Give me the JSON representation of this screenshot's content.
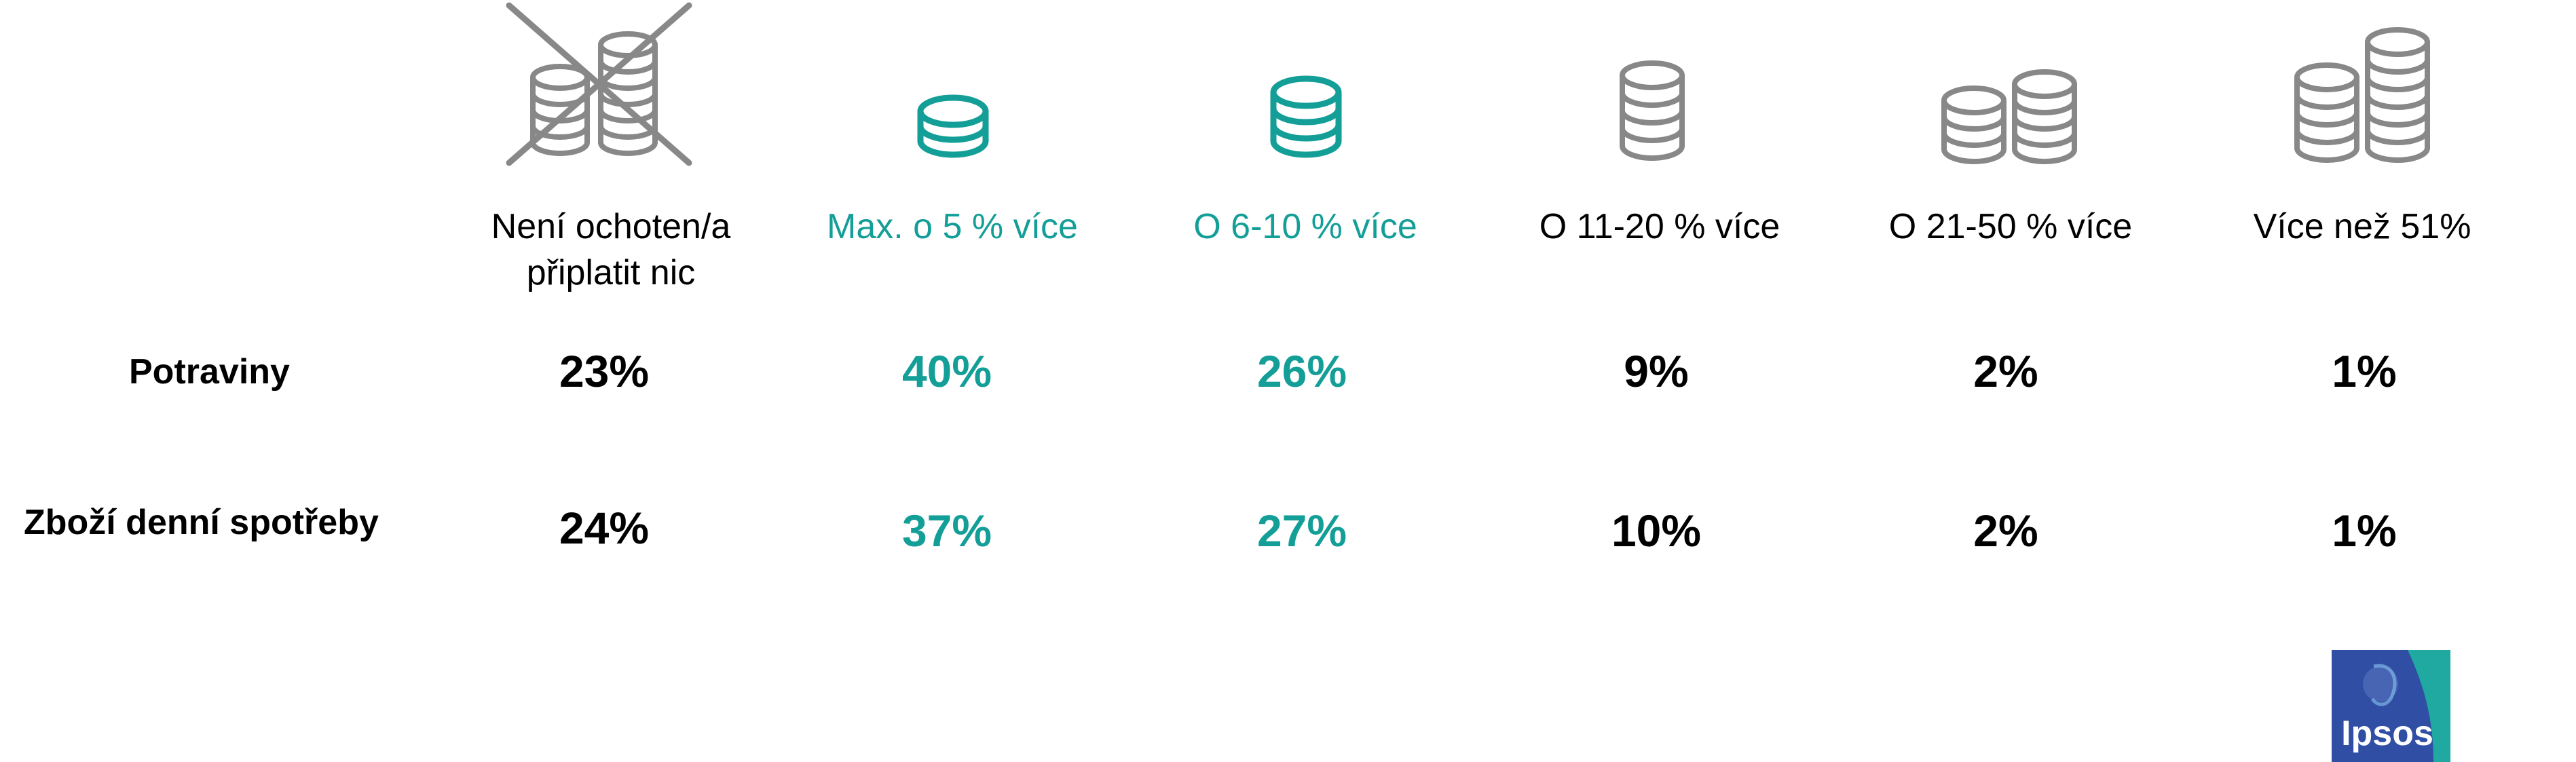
{
  "colors": {
    "accent": "#139e97",
    "icon_gray": "#888888",
    "text": "#000000",
    "logo_blue": "#2f4ea4",
    "logo_teal": "#1fa9a0"
  },
  "chart_data": {
    "type": "table",
    "columns": [
      {
        "label": "Není ochoten/a\npřiplatit nic",
        "icon": "coins-crossed-icon",
        "highlight": false
      },
      {
        "label": "Max. o 5 % více",
        "icon": "coin-stack-1-icon",
        "highlight": true
      },
      {
        "label": "O 6-10 % více",
        "icon": "coin-stack-2-icon",
        "highlight": true
      },
      {
        "label": "O 11-20 % více",
        "icon": "coin-stack-4-icon",
        "highlight": false
      },
      {
        "label": "O 21-50 % více",
        "icon": "coin-stacks-double-icon",
        "highlight": false
      },
      {
        "label": "Více než 51%",
        "icon": "coin-stacks-tall-double-icon",
        "highlight": false
      }
    ],
    "rows": [
      {
        "label": "Potraviny",
        "values": [
          "23%",
          "40%",
          "26%",
          "9%",
          "2%",
          "1%"
        ]
      },
      {
        "label": "Zboží denní spotřeby",
        "values": [
          "24%",
          "37%",
          "27%",
          "10%",
          "2%",
          "1%"
        ]
      }
    ]
  },
  "logo": {
    "text": "Ipsos"
  }
}
